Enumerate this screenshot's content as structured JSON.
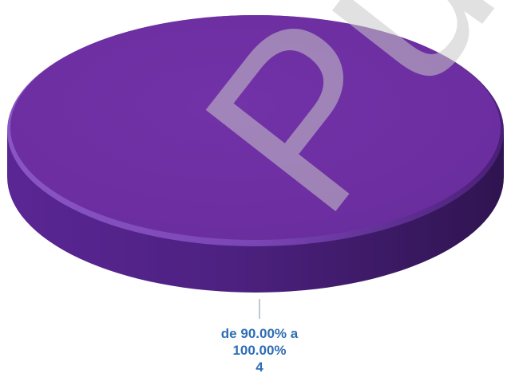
{
  "chart_data": {
    "type": "pie",
    "style": "3d",
    "slices": [
      {
        "label": "de 90.00% a 100.00%",
        "value": 4
      }
    ],
    "data_label_lines": [
      "de 90.00% a",
      "100.00%",
      "4"
    ],
    "colors": {
      "slice_top": "#6b2fa0",
      "slice_side": "#4c207a",
      "label": "#2f6eb4"
    }
  },
  "watermark": {
    "text": "Públ"
  }
}
